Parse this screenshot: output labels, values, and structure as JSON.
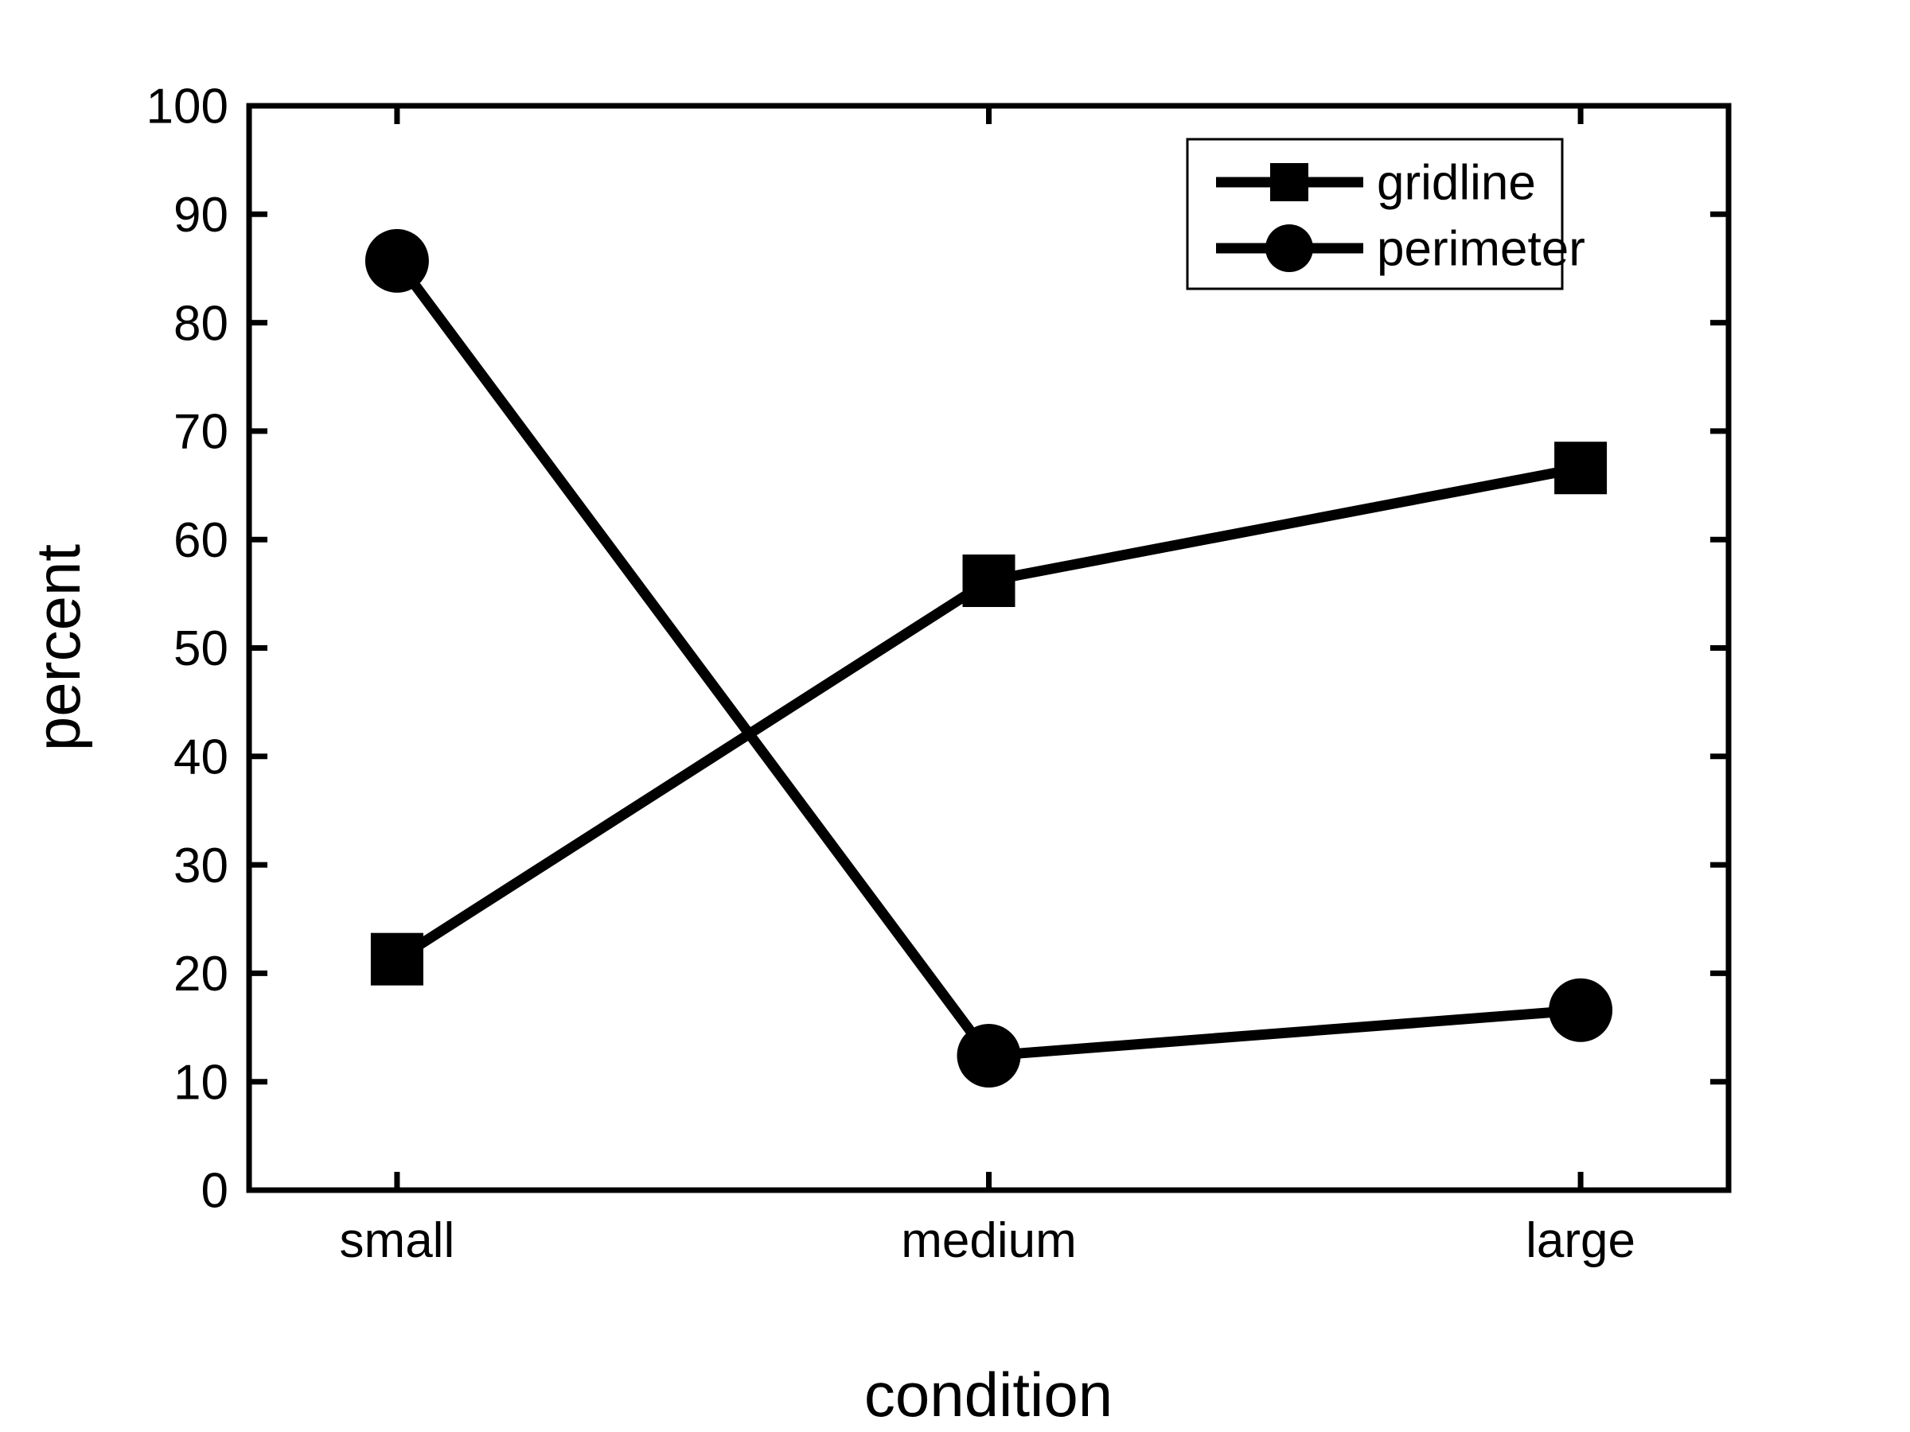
{
  "page": {
    "background": "#ffffff",
    "foreground": "#000000"
  },
  "chart_data": {
    "type": "line",
    "title": "",
    "xlabel": "condition",
    "ylabel": "percent",
    "categories": [
      "small",
      "medium",
      "large"
    ],
    "series": [
      {
        "name": "gridline",
        "marker": "square",
        "color": "#000000",
        "values": [
          21.3,
          56.2,
          66.6
        ]
      },
      {
        "name": "perimeter",
        "marker": "circle",
        "color": "#000000",
        "values": [
          85.7,
          12.4,
          16.6
        ]
      }
    ],
    "ylim": [
      0,
      100
    ],
    "yticks": [
      0,
      10,
      20,
      30,
      40,
      50,
      60,
      70,
      80,
      90,
      100
    ],
    "grid": false,
    "legend": {
      "position": "top-right",
      "entries": [
        {
          "label": "gridline",
          "marker": "square"
        },
        {
          "label": "perimeter",
          "marker": "circle"
        }
      ]
    }
  }
}
